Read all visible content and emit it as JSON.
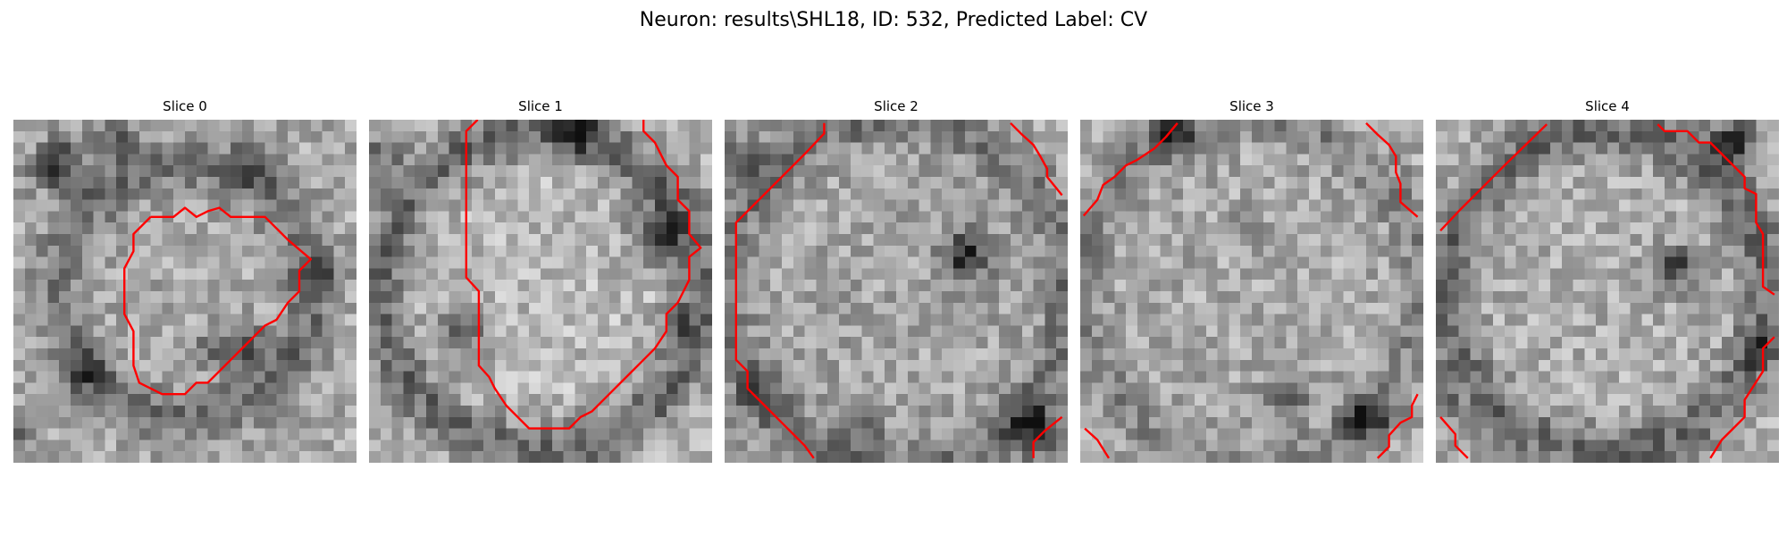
{
  "figure": {
    "title": "Neuron: results\\SHL18, ID: 532, Predicted Label: CV"
  },
  "panels": [
    {
      "title": "Slice 0"
    },
    {
      "title": "Slice 1"
    },
    {
      "title": "Slice 2"
    },
    {
      "title": "Slice 3"
    },
    {
      "title": "Slice 4"
    }
  ],
  "image": {
    "colormap": "grayscale",
    "contour_color": "#ff0000"
  }
}
